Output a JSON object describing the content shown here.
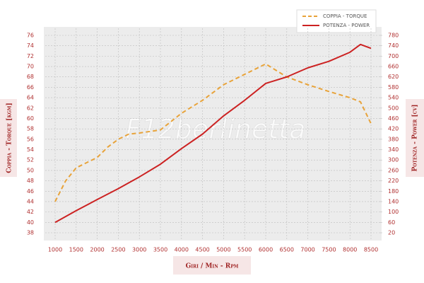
{
  "chart_data": {
    "type": "line",
    "watermark": "F12berlinetta",
    "xlabel": "Giri / Min - Rpm",
    "ylabel": "Coppia - Torque [kgm]",
    "y2label": "Potenza - Power [cv]",
    "grid": true,
    "legend": "top right",
    "xlim": [
      1000,
      8500
    ],
    "xticks": [
      1000,
      1500,
      2000,
      2500,
      3000,
      3500,
      4000,
      4500,
      5000,
      5500,
      6000,
      6500,
      7000,
      7500,
      8000,
      8500
    ],
    "ylim": [
      38,
      76
    ],
    "yticks": [
      38,
      40,
      42,
      44,
      46,
      48,
      50,
      52,
      54,
      56,
      58,
      60,
      62,
      64,
      66,
      68,
      70,
      72,
      74,
      76
    ],
    "y2lim": [
      20,
      780
    ],
    "y2ticks": [
      20,
      60,
      100,
      140,
      180,
      220,
      260,
      300,
      340,
      380,
      420,
      460,
      500,
      540,
      580,
      620,
      660,
      700,
      740,
      780
    ],
    "series": [
      {
        "name": "COPPIA - TORQUE",
        "color": "#e8a33a",
        "dashed": true,
        "x": [
          1000,
          1250,
          1500,
          2000,
          2250,
          2500,
          2750,
          3000,
          3500,
          4000,
          4500,
          5000,
          5500,
          6000,
          6500,
          7000,
          7500,
          8000,
          8250,
          8500
        ],
        "values": [
          44,
          48,
          50.5,
          52.5,
          54.5,
          56,
          57,
          57.2,
          57.8,
          61,
          63.5,
          66.5,
          68.5,
          70.5,
          68,
          66.5,
          65.2,
          64,
          63.2,
          59
        ]
      },
      {
        "name": "POTENZA - POWER",
        "color": "#cc2222",
        "axis": "y2",
        "x": [
          1000,
          1500,
          2000,
          2500,
          3000,
          3500,
          4000,
          4500,
          5000,
          5500,
          6000,
          6500,
          7000,
          7500,
          8000,
          8250,
          8500
        ],
        "values": [
          60,
          105,
          148,
          190,
          235,
          284,
          344,
          400,
          470,
          530,
          595,
          620,
          655,
          680,
          715,
          745,
          730
        ]
      }
    ]
  }
}
